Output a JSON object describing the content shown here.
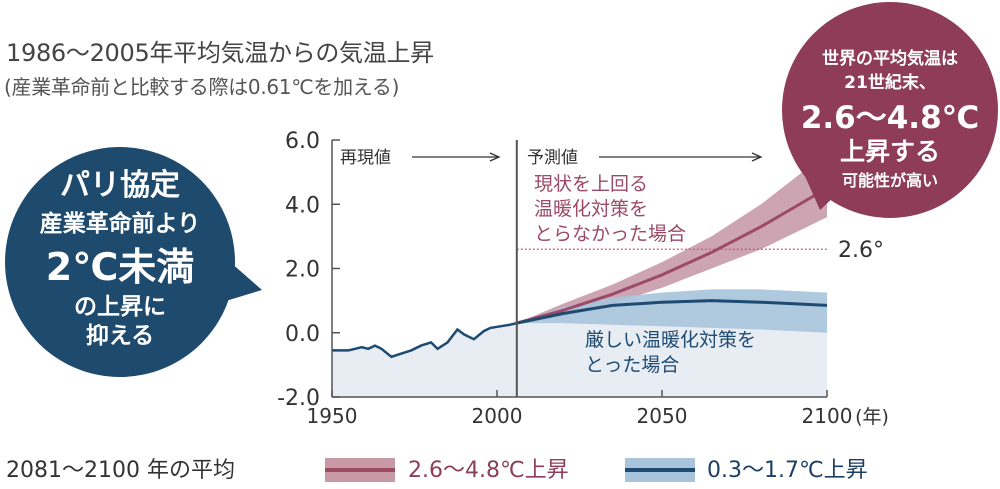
{
  "header": {
    "title": "1986〜2005年平均気温からの気温上昇",
    "subtitle": "(産業革命前と比較する際は0.61℃を加える)"
  },
  "left_bubble": {
    "line1": "パリ協定",
    "line2": "産業革命前より",
    "line3": "2℃未満",
    "line4": "の上昇に",
    "line5": "抑える"
  },
  "right_bubble": {
    "line1": "世界の平均気温は",
    "line2": "21世紀末、",
    "line3": "2.6〜4.8℃",
    "line4": "上昇する",
    "line5": "可能性が高い"
  },
  "legend": {
    "title": "2081〜2100 年の平均",
    "high_label": "2.6〜4.8℃上昇",
    "low_label": "0.3〜1.7℃上昇"
  },
  "colors": {
    "high": "#9c4a66",
    "high_band": "#c89aa8",
    "low": "#1f4a72",
    "low_band": "#a8c4dc",
    "hist_fill": "#e8edf4",
    "bubble_left": "#1e4a6e",
    "bubble_right": "#8e3c58"
  },
  "chart_data": {
    "type": "line",
    "xlim": [
      1950,
      2100
    ],
    "ylim": [
      -2,
      6
    ],
    "xticks": [
      "1950",
      "2000",
      "2050",
      "2100"
    ],
    "yticks": [
      "6.0",
      "4.0",
      "2.0",
      "0.0",
      "-2.0"
    ],
    "x_unit": "(年)",
    "divider_x": 2006,
    "region_labels": {
      "past": "再現値",
      "future": "予測値"
    },
    "reference_line": {
      "y": 2.6,
      "label": "2.6°"
    },
    "historical": {
      "x": [
        1950,
        1952,
        1955,
        1957,
        1959,
        1961,
        1963,
        1965,
        1968,
        1971,
        1974,
        1977,
        1980,
        1982,
        1985,
        1988,
        1990,
        1993,
        1996,
        1998,
        2001,
        2004,
        2006
      ],
      "y": [
        -0.55,
        -0.55,
        -0.55,
        -0.5,
        -0.45,
        -0.5,
        -0.4,
        -0.5,
        -0.75,
        -0.65,
        -0.55,
        -0.4,
        -0.3,
        -0.5,
        -0.3,
        0.1,
        -0.05,
        -0.2,
        0.05,
        0.15,
        0.2,
        0.25,
        0.3
      ]
    },
    "series": [
      {
        "name": "現状を上回る温暖化対策をとらなかった場合",
        "x": [
          2006,
          2020,
          2035,
          2050,
          2065,
          2080,
          2090,
          2100
        ],
        "mean": [
          0.3,
          0.7,
          1.2,
          1.8,
          2.5,
          3.3,
          3.9,
          4.5
        ],
        "lower": [
          0.3,
          0.5,
          0.9,
          1.4,
          2.0,
          2.6,
          3.1,
          3.6
        ],
        "upper": [
          0.3,
          0.9,
          1.5,
          2.2,
          3.0,
          4.0,
          4.8,
          5.6
        ]
      },
      {
        "name": "厳しい温暖化対策をとった場合",
        "x": [
          2006,
          2020,
          2035,
          2050,
          2065,
          2080,
          2090,
          2100
        ],
        "mean": [
          0.3,
          0.6,
          0.85,
          0.95,
          1.0,
          0.95,
          0.9,
          0.85
        ],
        "lower": [
          0.3,
          0.3,
          0.25,
          0.2,
          0.15,
          0.1,
          0.05,
          0.0
        ],
        "upper": [
          0.3,
          0.8,
          1.1,
          1.25,
          1.35,
          1.35,
          1.3,
          1.25
        ]
      }
    ]
  }
}
